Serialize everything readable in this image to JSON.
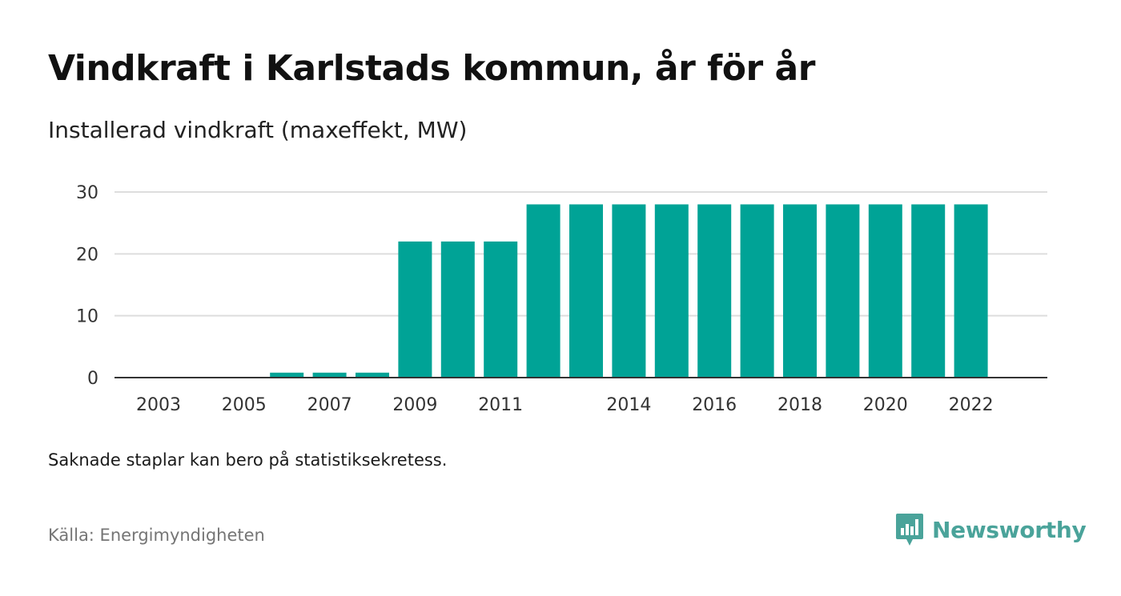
{
  "title": "Vindkraft i Karlstads kommun, år för år",
  "subtitle": "Installerad vindkraft (maxeffekt, MW)",
  "note": "Saknade staplar kan bero på statistiksekretess.",
  "source": "Källa: Energimyndigheten",
  "brand": {
    "name": "Newsworthy",
    "logo_icon": "newsworthy-bar-chart-icon",
    "color": "#4aa39a"
  },
  "chart_data": {
    "type": "bar",
    "categories": [
      "2003",
      "2004",
      "2005",
      "2006",
      "2007",
      "2008",
      "2009",
      "2010",
      "2011",
      "2012",
      "2013",
      "2014",
      "2015",
      "2016",
      "2017",
      "2018",
      "2019",
      "2020",
      "2021",
      "2022"
    ],
    "values": [
      0,
      0,
      0,
      0.8,
      0.8,
      0.8,
      22,
      22,
      22,
      28,
      28,
      28,
      28,
      28,
      28,
      28,
      28,
      28,
      28,
      28
    ],
    "x_tick_labels": [
      "2003",
      "2005",
      "2007",
      "2009",
      "2011",
      "2014",
      "2016",
      "2018",
      "2020",
      "2022"
    ],
    "y_ticks": [
      "0",
      "10",
      "20",
      "30"
    ],
    "ylim": [
      0,
      30
    ],
    "grid": true,
    "bar_color": "#00a396",
    "xlabel": "",
    "ylabel": ""
  }
}
